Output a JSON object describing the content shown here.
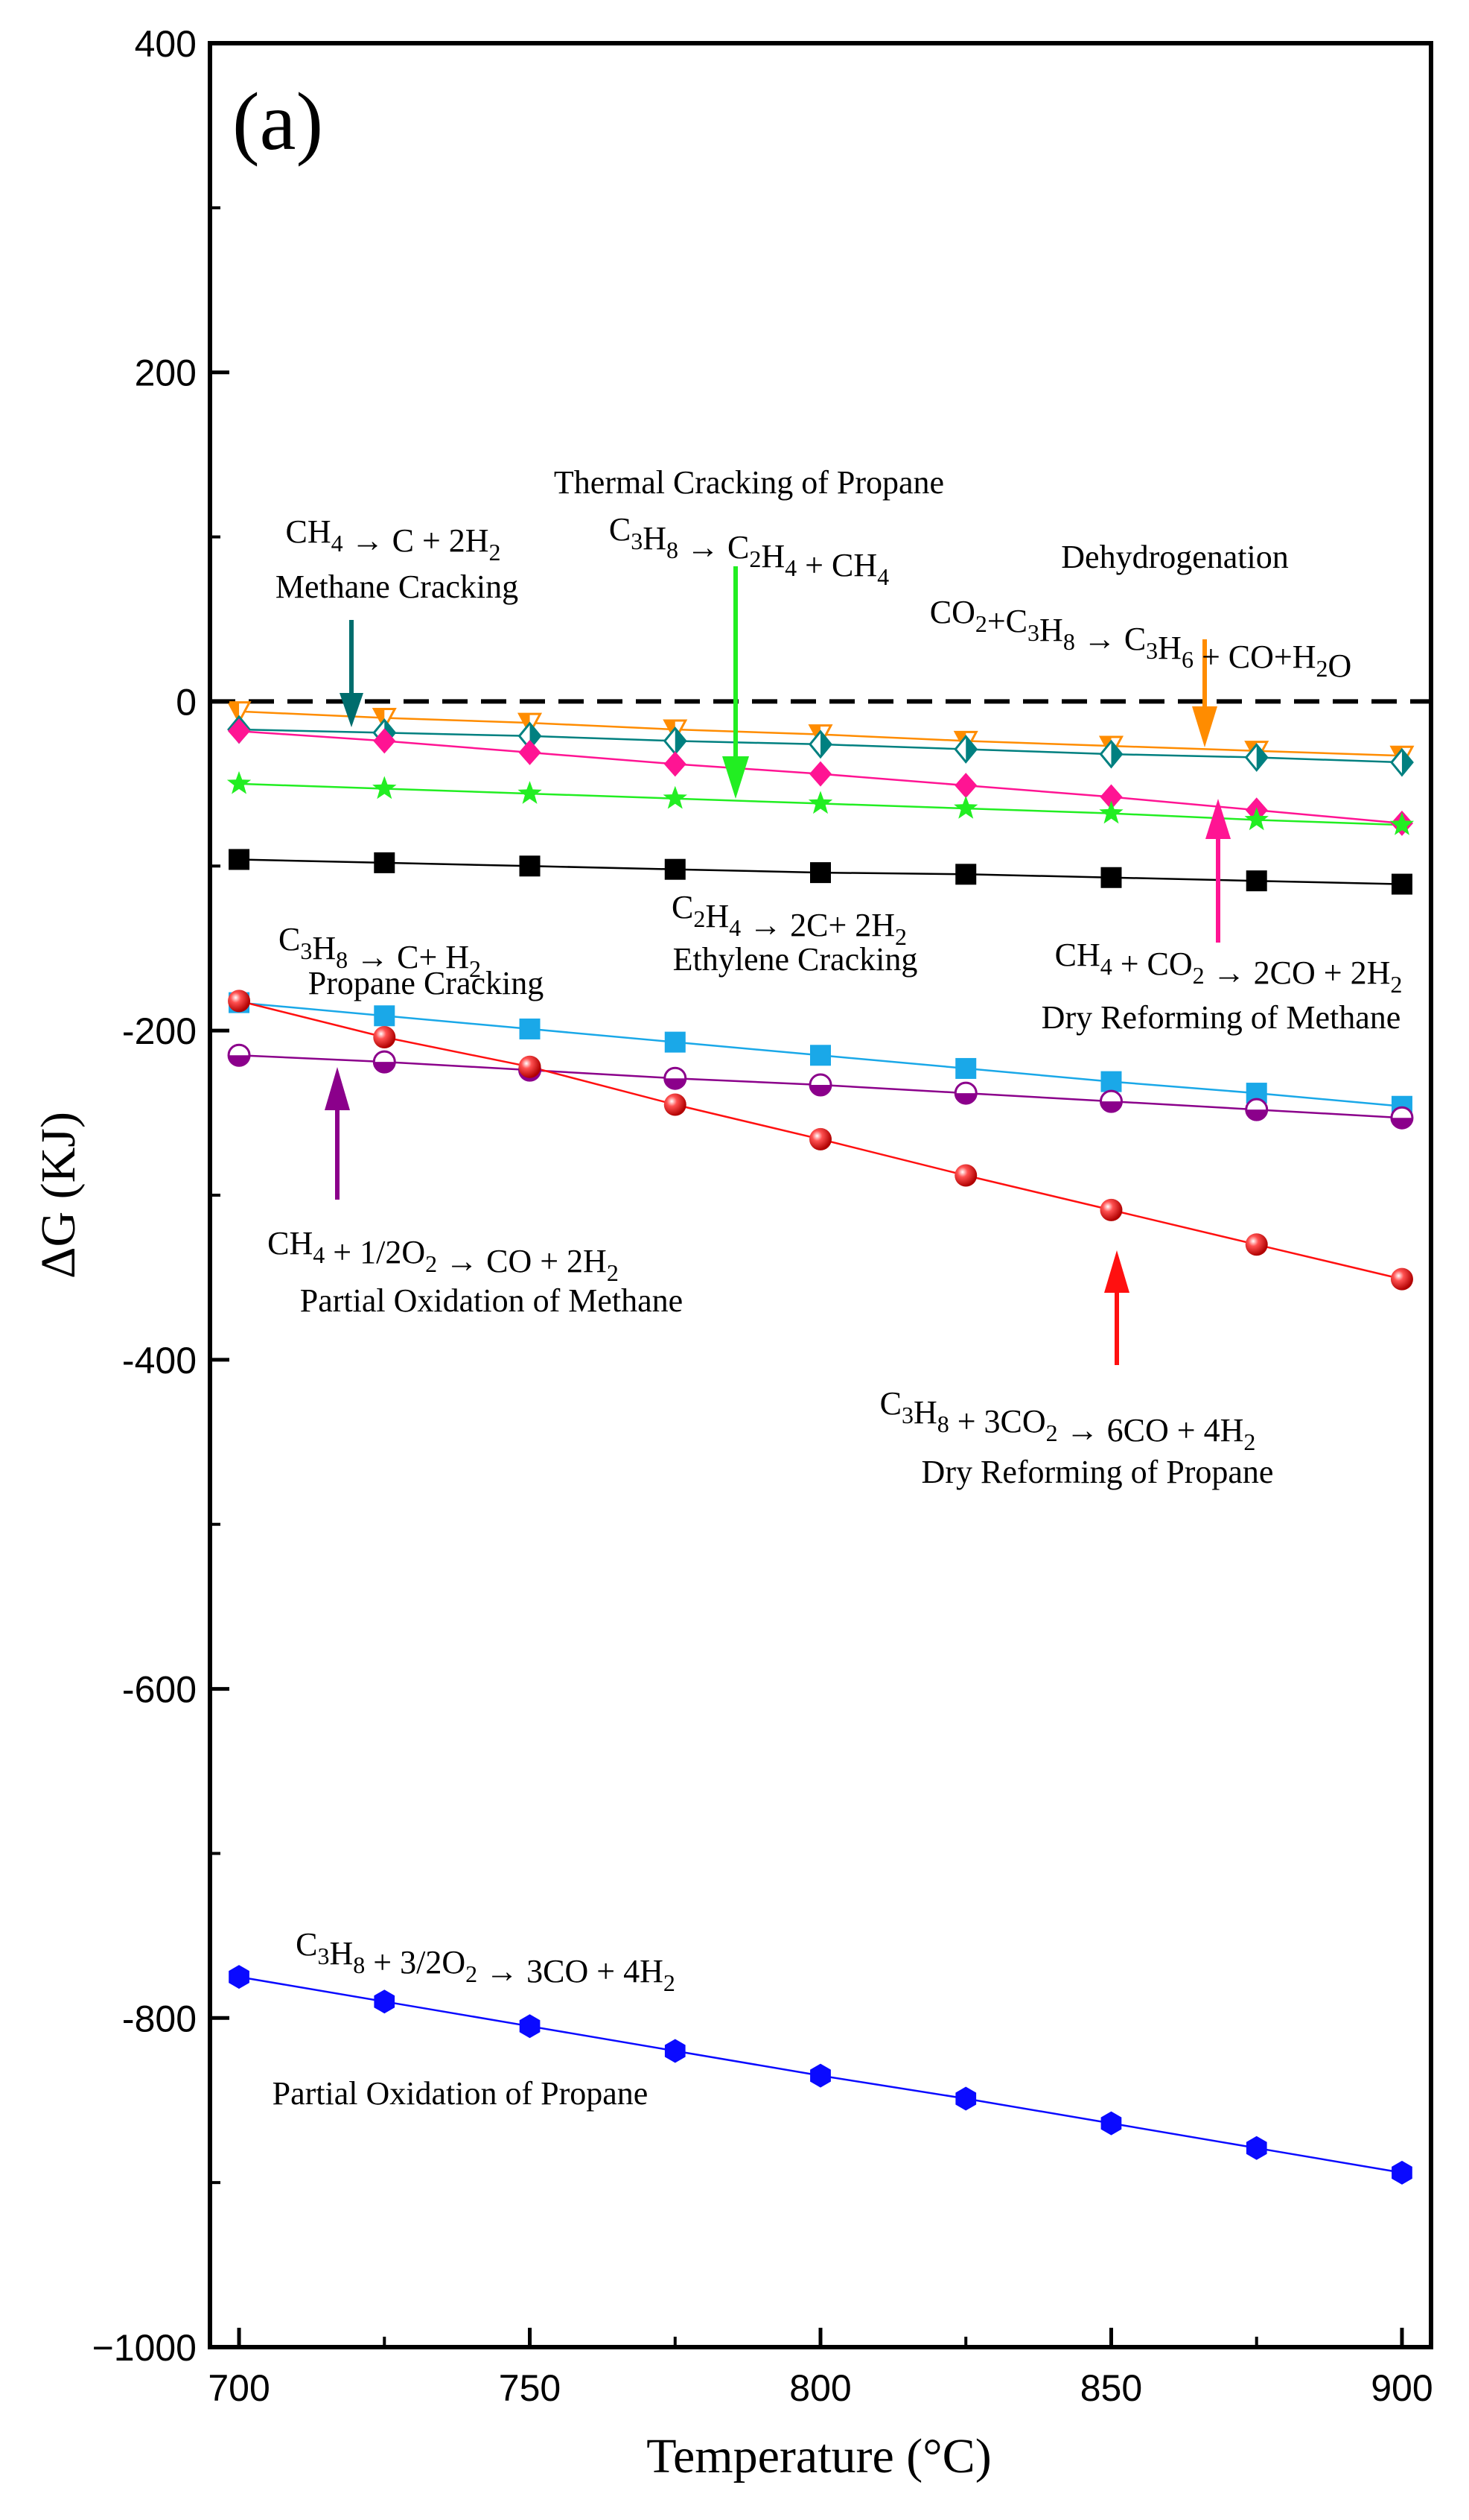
{
  "chart_data": {
    "type": "line",
    "panel_label": "(a)",
    "xlabel": "Temperature (°C)",
    "ylabel": "ΔG (KJ)",
    "xlim": [
      695,
      905
    ],
    "ylim": [
      -1000,
      400
    ],
    "x": [
      700,
      725,
      750,
      775,
      800,
      825,
      850,
      875,
      900
    ],
    "x_ticks": [
      "700",
      "750",
      "800",
      "850",
      "900"
    ],
    "y_ticks": [
      "400",
      "200",
      "0",
      "-200",
      "-400",
      "-600",
      "-800",
      "−1000"
    ],
    "zero_line": true,
    "series": [
      {
        "name": "Dehydrogenation",
        "color": "#ff8c00",
        "marker": "triangle-down-half",
        "values": [
          -6,
          -10,
          -13,
          -17,
          -20,
          -24,
          -27,
          -30,
          -33
        ]
      },
      {
        "name": "Methane Cracking",
        "color": "#008080",
        "marker": "diamond-half",
        "values": [
          -17,
          -19,
          -21,
          -24,
          -26,
          -29,
          -32,
          -34,
          -37
        ]
      },
      {
        "name": "Dry Reforming of Methane",
        "color": "#ff1493",
        "marker": "diamond",
        "values": [
          -18,
          -24,
          -31,
          -38,
          -44,
          -51,
          -58,
          -66,
          -74
        ]
      },
      {
        "name": "Thermal Cracking of Propane",
        "color": "#22ee22",
        "marker": "star",
        "values": [
          -50,
          -53,
          -56,
          -59,
          -62,
          -65,
          -68,
          -72,
          -75
        ]
      },
      {
        "name": "Ethylene Cracking",
        "color": "#000000",
        "marker": "square",
        "values": [
          -96,
          -98,
          -100,
          -102,
          -104,
          -105,
          -107,
          -109,
          -111
        ]
      },
      {
        "name": "Propane Cracking",
        "color": "#1aa8e8",
        "marker": "square",
        "values": [
          -183,
          -191,
          -199,
          -207,
          -215,
          -223,
          -231,
          -238,
          -246
        ]
      },
      {
        "name": "Partial Oxidation of Methane",
        "color": "#8b008b",
        "marker": "circle-half",
        "values": [
          -215,
          -219,
          -224,
          -229,
          -233,
          -238,
          -243,
          -248,
          -253
        ]
      },
      {
        "name": "Dry Reforming of Propane",
        "color": "#ff1010",
        "marker": "circle",
        "values": [
          -182,
          -204,
          -222,
          -245,
          -266,
          -288,
          -309,
          -330,
          -351
        ]
      },
      {
        "name": "Partial Oxidation of Propane",
        "color": "#0a0aff",
        "marker": "hexagon",
        "values": [
          -775,
          -790,
          -805,
          -820,
          -835,
          -849,
          -864,
          -879,
          -894
        ]
      }
    ],
    "annotations": [
      {
        "id": "thermal",
        "title": "Thermal Cracking of Propane",
        "reaction": [
          {
            "t": "C"
          },
          {
            "t": "3",
            "s": "sub"
          },
          {
            "t": "H"
          },
          {
            "t": "8",
            "s": "sub"
          },
          {
            "t": " → C"
          },
          {
            "t": "2",
            "s": "sub"
          },
          {
            "t": "H"
          },
          {
            "t": "4",
            "s": "sub"
          },
          {
            "t": " + CH"
          },
          {
            "t": "4",
            "s": "sub"
          }
        ]
      },
      {
        "id": "methane",
        "title": "Methane Cracking",
        "reaction": [
          {
            "t": "CH"
          },
          {
            "t": "4",
            "s": "sub"
          },
          {
            "t": " → C + 2H"
          },
          {
            "t": "2",
            "s": "sub"
          }
        ]
      },
      {
        "id": "dehyd",
        "title": "Dehydrogenation",
        "reaction": [
          {
            "t": "CO"
          },
          {
            "t": "2",
            "s": "sub"
          },
          {
            "t": "+C"
          },
          {
            "t": "3",
            "s": "sub"
          },
          {
            "t": "H"
          },
          {
            "t": "8",
            "s": "sub"
          },
          {
            "t": " → C"
          },
          {
            "t": "3",
            "s": "sub"
          },
          {
            "t": "H"
          },
          {
            "t": "6",
            "s": "sub"
          },
          {
            "t": " + CO+H"
          },
          {
            "t": "2",
            "s": "sub"
          },
          {
            "t": "O"
          }
        ]
      },
      {
        "id": "ethylene",
        "title": "Ethylene Cracking",
        "reaction": [
          {
            "t": "C"
          },
          {
            "t": "2",
            "s": "sub"
          },
          {
            "t": "H"
          },
          {
            "t": "4",
            "s": "sub"
          },
          {
            "t": " → 2C+ 2H"
          },
          {
            "t": "2",
            "s": "sub"
          }
        ]
      },
      {
        "id": "propcrack",
        "title": "Propane Cracking",
        "reaction": [
          {
            "t": "C"
          },
          {
            "t": "3",
            "s": "sub"
          },
          {
            "t": "H"
          },
          {
            "t": "8",
            "s": "sub"
          },
          {
            "t": " → C+ H"
          },
          {
            "t": "2",
            "s": "sub"
          }
        ]
      },
      {
        "id": "drm",
        "title": "Dry Reforming of Methane",
        "reaction": [
          {
            "t": "CH"
          },
          {
            "t": "4",
            "s": "sub"
          },
          {
            "t": " + CO"
          },
          {
            "t": "2",
            "s": "sub"
          },
          {
            "t": " → 2CO + 2H"
          },
          {
            "t": "2",
            "s": "sub"
          }
        ]
      },
      {
        "id": "pom",
        "title": "Partial Oxidation of Methane",
        "reaction": [
          {
            "t": "CH"
          },
          {
            "t": "4",
            "s": "sub"
          },
          {
            "t": " + 1/2O"
          },
          {
            "t": "2",
            "s": "sub"
          },
          {
            "t": " → CO + 2H"
          },
          {
            "t": "2",
            "s": "sub"
          }
        ]
      },
      {
        "id": "drp",
        "title": "Dry Reforming of Propane",
        "reaction": [
          {
            "t": "C"
          },
          {
            "t": "3",
            "s": "sub"
          },
          {
            "t": "H"
          },
          {
            "t": "8",
            "s": "sub"
          },
          {
            "t": " + 3CO"
          },
          {
            "t": "2",
            "s": "sub"
          },
          {
            "t": " → 6CO + 4H"
          },
          {
            "t": "2",
            "s": "sub"
          }
        ]
      },
      {
        "id": "pop",
        "title": "Partial Oxidation of Propane",
        "reaction": [
          {
            "t": "C"
          },
          {
            "t": "3",
            "s": "sub"
          },
          {
            "t": "H"
          },
          {
            "t": "8",
            "s": "sub"
          },
          {
            "t": " + 3/2O"
          },
          {
            "t": "2",
            "s": "sub"
          },
          {
            "t": " → 3CO + 4H"
          },
          {
            "t": "2",
            "s": "sub"
          }
        ]
      }
    ]
  }
}
